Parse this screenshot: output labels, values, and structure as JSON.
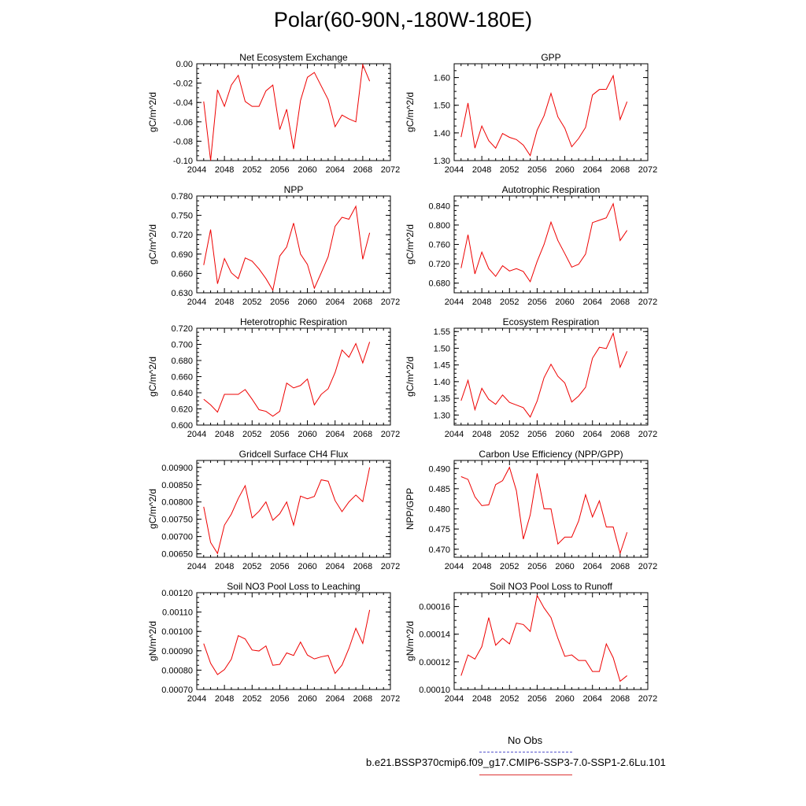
{
  "title": "Polar(60-90N,-180W-180E)",
  "legend": {
    "entries": [
      {
        "label": "No Obs",
        "color": "#5555cc",
        "style": "dashed"
      },
      {
        "label": "b.e21.BSSP370cmip6.f09_g17.CMIP6-SSP3-7.0-SSP1-2.6Lu.101",
        "color": "#dd3333",
        "style": "solid"
      }
    ]
  },
  "chart_data": [
    {
      "type": "line",
      "title": "Net Ecosystem Exchange",
      "ylabel": "gC/m^2/d",
      "xlim": [
        2044,
        2072
      ],
      "ylim": [
        -0.1,
        0.0
      ],
      "xticks": [
        2044,
        2048,
        2052,
        2056,
        2060,
        2064,
        2068,
        2072
      ],
      "yticks": [
        "-0.10",
        "-0.08",
        "-0.06",
        "-0.04",
        "-0.02",
        "0.00"
      ],
      "series": [
        {
          "color": "#ee0000",
          "x": [
            2045,
            2046,
            2047,
            2048,
            2049,
            2050,
            2051,
            2052,
            2053,
            2054,
            2055,
            2056,
            2057,
            2058,
            2059,
            2060,
            2061,
            2062,
            2063,
            2064,
            2065,
            2066,
            2067,
            2068,
            2069
          ],
          "y": [
            -0.039,
            -0.1,
            -0.027,
            -0.044,
            -0.022,
            -0.012,
            -0.039,
            -0.044,
            -0.044,
            -0.028,
            -0.022,
            -0.068,
            -0.047,
            -0.088,
            -0.038,
            -0.014,
            -0.009,
            -0.023,
            -0.037,
            -0.065,
            -0.053,
            -0.057,
            -0.06,
            -0.001,
            -0.018
          ]
        }
      ]
    },
    {
      "type": "line",
      "title": "GPP",
      "ylabel": "gC/m^2/d",
      "xlim": [
        2044,
        2072
      ],
      "ylim": [
        1.3,
        1.65
      ],
      "xticks": [
        2044,
        2048,
        2052,
        2056,
        2060,
        2064,
        2068,
        2072
      ],
      "yticks": [
        "1.30",
        "1.40",
        "1.50",
        "1.60"
      ],
      "series": [
        {
          "color": "#ee0000",
          "x": [
            2045,
            2046,
            2047,
            2048,
            2049,
            2050,
            2051,
            2052,
            2053,
            2054,
            2055,
            2056,
            2057,
            2058,
            2059,
            2060,
            2061,
            2062,
            2063,
            2064,
            2065,
            2066,
            2067,
            2068,
            2069
          ],
          "y": [
            1.385,
            1.508,
            1.345,
            1.425,
            1.372,
            1.345,
            1.398,
            1.384,
            1.376,
            1.356,
            1.318,
            1.41,
            1.462,
            1.543,
            1.458,
            1.417,
            1.35,
            1.38,
            1.42,
            1.537,
            1.557,
            1.558,
            1.607,
            1.448,
            1.513
          ]
        }
      ]
    },
    {
      "type": "line",
      "title": "NPP",
      "ylabel": "gC/m^2/d",
      "xlim": [
        2044,
        2072
      ],
      "ylim": [
        0.63,
        0.78
      ],
      "xticks": [
        2044,
        2048,
        2052,
        2056,
        2060,
        2064,
        2068,
        2072
      ],
      "yticks": [
        "0.630",
        "0.660",
        "0.690",
        "0.720",
        "0.750",
        "0.780"
      ],
      "series": [
        {
          "color": "#ee0000",
          "x": [
            2045,
            2046,
            2047,
            2048,
            2049,
            2050,
            2051,
            2052,
            2053,
            2054,
            2055,
            2056,
            2057,
            2058,
            2059,
            2060,
            2061,
            2062,
            2063,
            2064,
            2065,
            2066,
            2067,
            2068,
            2069
          ],
          "y": [
            0.673,
            0.728,
            0.644,
            0.683,
            0.661,
            0.652,
            0.684,
            0.679,
            0.667,
            0.652,
            0.634,
            0.687,
            0.701,
            0.738,
            0.69,
            0.674,
            0.637,
            0.661,
            0.686,
            0.733,
            0.747,
            0.744,
            0.764,
            0.682,
            0.723
          ]
        }
      ]
    },
    {
      "type": "line",
      "title": "Autotrophic Respiration",
      "ylabel": "gC/m^2/d",
      "xlim": [
        2044,
        2072
      ],
      "ylim": [
        0.66,
        0.86
      ],
      "xticks": [
        2044,
        2048,
        2052,
        2056,
        2060,
        2064,
        2068,
        2072
      ],
      "yticks": [
        "0.680",
        "0.720",
        "0.760",
        "0.800",
        "0.840"
      ],
      "series": [
        {
          "color": "#ee0000",
          "x": [
            2045,
            2046,
            2047,
            2048,
            2049,
            2050,
            2051,
            2052,
            2053,
            2054,
            2055,
            2056,
            2057,
            2058,
            2059,
            2060,
            2061,
            2062,
            2063,
            2064,
            2065,
            2066,
            2067,
            2068,
            2069
          ],
          "y": [
            0.711,
            0.78,
            0.699,
            0.744,
            0.71,
            0.694,
            0.716,
            0.705,
            0.71,
            0.704,
            0.683,
            0.725,
            0.76,
            0.806,
            0.768,
            0.741,
            0.713,
            0.719,
            0.74,
            0.805,
            0.81,
            0.815,
            0.844,
            0.768,
            0.789
          ]
        }
      ]
    },
    {
      "type": "line",
      "title": "Heterotrophic Respiration",
      "ylabel": "gC/m^2/d",
      "xlim": [
        2044,
        2072
      ],
      "ylim": [
        0.6,
        0.72
      ],
      "xticks": [
        2044,
        2048,
        2052,
        2056,
        2060,
        2064,
        2068,
        2072
      ],
      "yticks": [
        "0.600",
        "0.620",
        "0.640",
        "0.660",
        "0.680",
        "0.700",
        "0.720"
      ],
      "series": [
        {
          "color": "#ee0000",
          "x": [
            2045,
            2046,
            2047,
            2048,
            2049,
            2050,
            2051,
            2052,
            2053,
            2054,
            2055,
            2056,
            2057,
            2058,
            2059,
            2060,
            2061,
            2062,
            2063,
            2064,
            2065,
            2066,
            2067,
            2068,
            2069
          ],
          "y": [
            0.632,
            0.625,
            0.616,
            0.638,
            0.638,
            0.638,
            0.644,
            0.632,
            0.619,
            0.617,
            0.611,
            0.617,
            0.652,
            0.646,
            0.649,
            0.657,
            0.625,
            0.638,
            0.645,
            0.665,
            0.693,
            0.684,
            0.701,
            0.677,
            0.703
          ]
        }
      ]
    },
    {
      "type": "line",
      "title": "Ecosystem Respiration",
      "ylabel": "gC/m^2/d",
      "xlim": [
        2044,
        2072
      ],
      "ylim": [
        1.27,
        1.56
      ],
      "xticks": [
        2044,
        2048,
        2052,
        2056,
        2060,
        2064,
        2068,
        2072
      ],
      "yticks": [
        "1.30",
        "1.35",
        "1.40",
        "1.45",
        "1.50",
        "1.55"
      ],
      "series": [
        {
          "color": "#ee0000",
          "x": [
            2045,
            2046,
            2047,
            2048,
            2049,
            2050,
            2051,
            2052,
            2053,
            2054,
            2055,
            2056,
            2057,
            2058,
            2059,
            2060,
            2061,
            2062,
            2063,
            2064,
            2065,
            2066,
            2067,
            2068,
            2069
          ],
          "y": [
            1.343,
            1.404,
            1.316,
            1.38,
            1.347,
            1.332,
            1.36,
            1.338,
            1.33,
            1.322,
            1.294,
            1.342,
            1.412,
            1.452,
            1.416,
            1.396,
            1.339,
            1.357,
            1.383,
            1.47,
            1.503,
            1.499,
            1.545,
            1.443,
            1.491
          ]
        }
      ]
    },
    {
      "type": "line",
      "title": "Gridcell Surface CH4 Flux",
      "ylabel": "gC/m^2/d",
      "xlim": [
        2044,
        2072
      ],
      "ylim": [
        0.0064,
        0.0092
      ],
      "xticks": [
        2044,
        2048,
        2052,
        2056,
        2060,
        2064,
        2068,
        2072
      ],
      "yticks": [
        "0.00650",
        "0.00700",
        "0.00750",
        "0.00800",
        "0.00850",
        "0.00900"
      ],
      "series": [
        {
          "color": "#ee0000",
          "x": [
            2045,
            2046,
            2047,
            2048,
            2049,
            2050,
            2051,
            2052,
            2053,
            2054,
            2055,
            2056,
            2057,
            2058,
            2059,
            2060,
            2061,
            2062,
            2063,
            2064,
            2065,
            2066,
            2067,
            2068,
            2069
          ],
          "y": [
            0.00786,
            0.00683,
            0.00651,
            0.00733,
            0.00765,
            0.0081,
            0.00847,
            0.00754,
            0.00773,
            0.008,
            0.00747,
            0.00766,
            0.008,
            0.00733,
            0.00817,
            0.00809,
            0.00816,
            0.00864,
            0.0086,
            0.00804,
            0.00772,
            0.008,
            0.0082,
            0.00801,
            0.009
          ]
        }
      ]
    },
    {
      "type": "line",
      "title": "Carbon Use Efficiency (NPP/GPP)",
      "ylabel": "NPP/GPP",
      "xlim": [
        2044,
        2072
      ],
      "ylim": [
        0.468,
        0.492
      ],
      "xticks": [
        2044,
        2048,
        2052,
        2056,
        2060,
        2064,
        2068,
        2072
      ],
      "yticks": [
        "0.470",
        "0.475",
        "0.480",
        "0.485",
        "0.490"
      ],
      "series": [
        {
          "color": "#ee0000",
          "x": [
            2045,
            2046,
            2047,
            2048,
            2049,
            2050,
            2051,
            2052,
            2053,
            2054,
            2055,
            2056,
            2057,
            2058,
            2059,
            2060,
            2061,
            2062,
            2063,
            2064,
            2065,
            2066,
            2067,
            2068,
            2069
          ],
          "y": [
            0.488,
            0.4873,
            0.483,
            0.4808,
            0.481,
            0.486,
            0.487,
            0.4903,
            0.4845,
            0.4725,
            0.4785,
            0.4888,
            0.48,
            0.48,
            0.4713,
            0.473,
            0.473,
            0.477,
            0.4835,
            0.478,
            0.482,
            0.4755,
            0.4755,
            0.469,
            0.4742
          ]
        }
      ]
    },
    {
      "type": "line",
      "title": "Soil NO3 Pool Loss to Leaching",
      "ylabel": "gN/m^2/d",
      "xlim": [
        2044,
        2072
      ],
      "ylim": [
        0.0007,
        0.0012
      ],
      "xticks": [
        2044,
        2048,
        2052,
        2056,
        2060,
        2064,
        2068,
        2072
      ],
      "yticks": [
        "0.00070",
        "0.00080",
        "0.00090",
        "0.00100",
        "0.00110",
        "0.00120"
      ],
      "series": [
        {
          "color": "#ee0000",
          "x": [
            2045,
            2046,
            2047,
            2048,
            2049,
            2050,
            2051,
            2052,
            2053,
            2054,
            2055,
            2056,
            2057,
            2058,
            2059,
            2060,
            2061,
            2062,
            2063,
            2064,
            2065,
            2066,
            2067,
            2068,
            2069
          ],
          "y": [
            0.000937,
            0.000835,
            0.000777,
            0.000803,
            0.000857,
            0.000978,
            0.000961,
            0.000904,
            0.000899,
            0.000925,
            0.000825,
            0.00083,
            0.000889,
            0.000876,
            0.000945,
            0.000878,
            0.000858,
            0.000869,
            0.000876,
            0.000783,
            0.000826,
            0.000912,
            0.001016,
            0.000938,
            0.001111
          ]
        }
      ]
    },
    {
      "type": "line",
      "title": "Soil NO3 Pool Loss to Runoff",
      "ylabel": "gN/m^2/d",
      "xlim": [
        2044,
        2072
      ],
      "ylim": [
        0.0001,
        0.00017
      ],
      "xticks": [
        2044,
        2048,
        2052,
        2056,
        2060,
        2064,
        2068,
        2072
      ],
      "yticks": [
        "0.00010",
        "0.00012",
        "0.00014",
        "0.00016"
      ],
      "series": [
        {
          "color": "#ee0000",
          "x": [
            2045,
            2046,
            2047,
            2048,
            2049,
            2050,
            2051,
            2052,
            2053,
            2054,
            2055,
            2056,
            2057,
            2058,
            2059,
            2060,
            2061,
            2062,
            2063,
            2064,
            2065,
            2066,
            2067,
            2068,
            2069
          ],
          "y": [
            0.00011,
            0.000125,
            0.000122,
            0.000131,
            0.000152,
            0.000132,
            0.000137,
            0.000133,
            0.000148,
            0.000147,
            0.000142,
            0.000168,
            0.000159,
            0.000152,
            0.000137,
            0.000124,
            0.000125,
            0.000121,
            0.000121,
            0.000113,
            0.000113,
            0.000133,
            0.000123,
            0.000106,
            0.00011
          ]
        }
      ]
    }
  ]
}
